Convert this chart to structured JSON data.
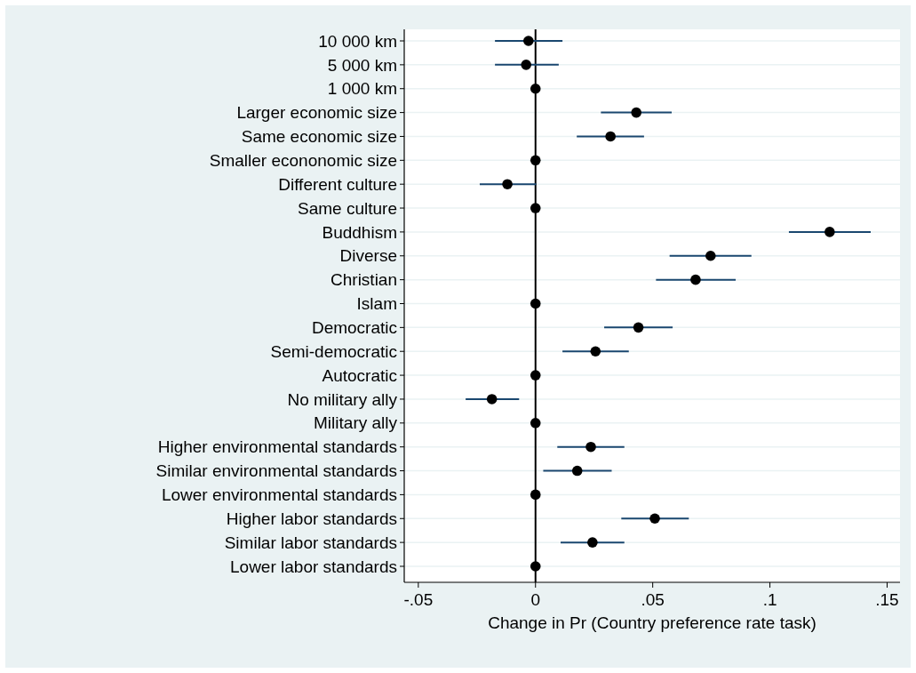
{
  "chart_data": {
    "type": "scatter",
    "orientation": "horizontal",
    "xlabel": "Change in Pr (Country preference rate task)",
    "categories": [
      "10 000 km",
      "5 000 km",
      "1 000 km",
      "Larger economic size",
      "Same economic size",
      "Smaller econonomic size",
      "Different culture",
      "Same culture",
      "Buddhism",
      "Diverse",
      "Christian",
      "Islam",
      "Democratic",
      "Semi-democratic",
      "Autocratic",
      "No military ally",
      "Military ally",
      "Higher environmental standards",
      "Similar environmental standards",
      "Lower environmental standards",
      "Higher labor standards",
      "Similar labor standards",
      "Lower labor standards"
    ],
    "series": [
      {
        "color": "#000000",
        "values": [
          -0.003,
          -0.004,
          0,
          0.043,
          0.032,
          0,
          -0.012,
          0,
          0.1255,
          0.0747,
          0.0683,
          0,
          0.0439,
          0.0256,
          0,
          -0.0186,
          0,
          0.0236,
          0.0178,
          0,
          0.0509,
          0.0243,
          0
        ],
        "errors": [
          [
            -0.0173,
            0.0115
          ],
          [
            -0.0173,
            0.0099
          ],
          null,
          [
            0.0279,
            0.0581
          ],
          [
            0.0176,
            0.0463
          ],
          null,
          [
            -0.0238,
            0.0003
          ],
          null,
          [
            0.1081,
            0.143
          ],
          [
            0.0572,
            0.0921
          ],
          [
            0.0514,
            0.0854
          ],
          null,
          [
            0.0293,
            0.0585
          ],
          [
            0.0115,
            0.0398
          ],
          null,
          [
            -0.0298,
            -0.007
          ],
          null,
          [
            0.0093,
            0.0379
          ],
          [
            0.0033,
            0.0325
          ],
          null,
          [
            0.0366,
            0.0654
          ],
          [
            0.0107,
            0.0379
          ],
          null
        ]
      }
    ],
    "xlim": [
      -0.056,
      0.1555
    ],
    "xticks": [
      {
        "value": -0.05,
        "label": "-.05"
      },
      0,
      {
        "value": 0.05,
        "label": ".05"
      },
      {
        "value": 0.1,
        "label": ".1"
      },
      {
        "value": 0.15,
        "label": ".15"
      }
    ],
    "ref_lines": [
      {
        "axis": "x",
        "value": 0,
        "color": "#000000"
      }
    ],
    "grid": "y",
    "marker": "circle"
  }
}
